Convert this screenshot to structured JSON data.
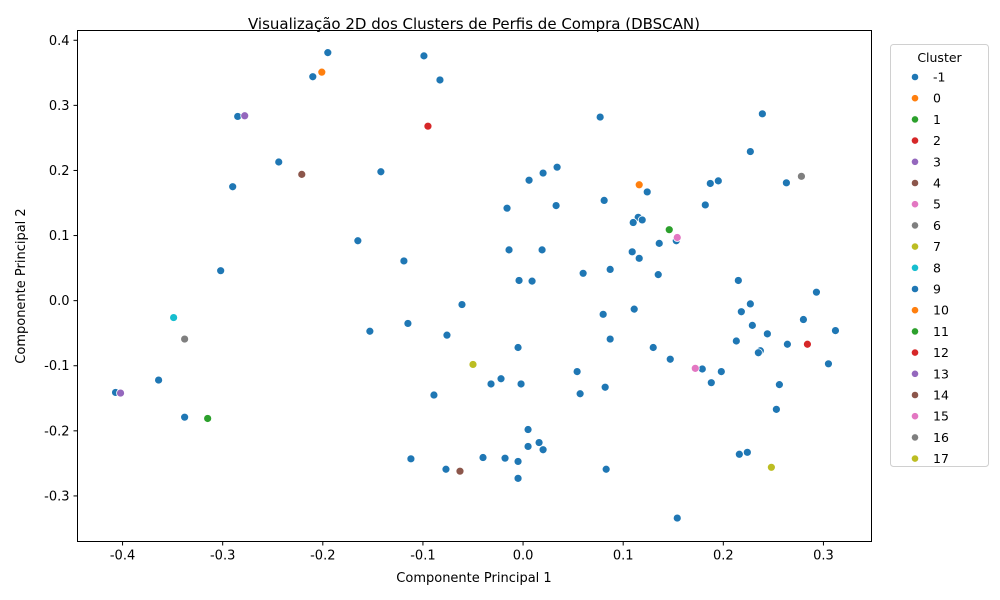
{
  "chart_data": {
    "type": "scatter",
    "title": "Visualização 2D dos Clusters de Perfis de Compra (DBSCAN)",
    "xlabel": "Componente Principal 1",
    "ylabel": "Componente Principal 2",
    "xlim": [
      -0.445,
      0.348
    ],
    "ylim": [
      -0.37,
      0.415
    ],
    "xticks": [
      "-0.4",
      "-0.3",
      "-0.2",
      "-0.1",
      "0.0",
      "0.1",
      "0.2",
      "0.3"
    ],
    "xtick_values": [
      -0.4,
      -0.3,
      -0.2,
      -0.1,
      0.0,
      0.1,
      0.2,
      0.3
    ],
    "yticks": [
      "-0.3",
      "-0.2",
      "-0.1",
      "0.0",
      "0.1",
      "0.2",
      "0.3",
      "0.4"
    ],
    "ytick_values": [
      -0.3,
      -0.2,
      -0.1,
      0.0,
      0.1,
      0.2,
      0.3,
      0.4
    ],
    "grid": false,
    "legend": {
      "title": "Cluster",
      "placement": "outside-right-top"
    },
    "series": [
      {
        "name": "-1",
        "color": "#1f77b4",
        "points": [
          [
            -0.195,
            0.381
          ],
          [
            -0.099,
            0.376
          ],
          [
            -0.083,
            0.339
          ],
          [
            -0.21,
            0.344
          ],
          [
            -0.285,
            0.283
          ],
          [
            0.077,
            0.282
          ],
          [
            0.239,
            0.287
          ],
          [
            0.227,
            0.229
          ],
          [
            -0.244,
            0.213
          ],
          [
            -0.142,
            0.198
          ],
          [
            0.034,
            0.205
          ],
          [
            0.02,
            0.196
          ],
          [
            0.006,
            0.185
          ],
          [
            -0.29,
            0.175
          ],
          [
            0.187,
            0.18
          ],
          [
            0.195,
            0.184
          ],
          [
            0.263,
            0.181
          ],
          [
            0.124,
            0.167
          ],
          [
            0.081,
            0.154
          ],
          [
            0.033,
            0.146
          ],
          [
            -0.016,
            0.142
          ],
          [
            0.182,
            0.147
          ],
          [
            0.115,
            0.128
          ],
          [
            0.119,
            0.124
          ],
          [
            0.11,
            0.12
          ],
          [
            -0.165,
            0.092
          ],
          [
            0.136,
            0.088
          ],
          [
            0.153,
            0.092
          ],
          [
            -0.014,
            0.078
          ],
          [
            0.019,
            0.078
          ],
          [
            0.109,
            0.075
          ],
          [
            0.116,
            0.065
          ],
          [
            -0.119,
            0.061
          ],
          [
            -0.302,
            0.046
          ],
          [
            0.087,
            0.048
          ],
          [
            0.06,
            0.042
          ],
          [
            0.135,
            0.04
          ],
          [
            -0.004,
            0.031
          ],
          [
            0.009,
            0.03
          ],
          [
            0.215,
            0.031
          ],
          [
            0.293,
            0.013
          ],
          [
            -0.061,
            -0.006
          ],
          [
            0.227,
            -0.005
          ],
          [
            0.111,
            -0.013
          ],
          [
            0.08,
            -0.021
          ],
          [
            0.218,
            -0.017
          ],
          [
            0.28,
            -0.029
          ],
          [
            -0.115,
            -0.035
          ],
          [
            0.229,
            -0.038
          ],
          [
            -0.153,
            -0.047
          ],
          [
            0.312,
            -0.046
          ],
          [
            -0.076,
            -0.053
          ],
          [
            0.244,
            -0.051
          ],
          [
            0.087,
            -0.059
          ],
          [
            0.213,
            -0.062
          ],
          [
            0.264,
            -0.067
          ],
          [
            0.13,
            -0.072
          ],
          [
            -0.005,
            -0.072
          ],
          [
            0.237,
            -0.077
          ],
          [
            0.235,
            -0.08
          ],
          [
            0.147,
            -0.09
          ],
          [
            0.305,
            -0.097
          ],
          [
            0.179,
            -0.105
          ],
          [
            0.198,
            -0.109
          ],
          [
            0.054,
            -0.109
          ],
          [
            -0.364,
            -0.122
          ],
          [
            -0.022,
            -0.12
          ],
          [
            -0.032,
            -0.128
          ],
          [
            -0.002,
            -0.128
          ],
          [
            0.082,
            -0.133
          ],
          [
            0.188,
            -0.126
          ],
          [
            0.256,
            -0.129
          ],
          [
            -0.407,
            -0.141
          ],
          [
            -0.089,
            -0.145
          ],
          [
            0.057,
            -0.143
          ],
          [
            0.253,
            -0.167
          ],
          [
            -0.338,
            -0.179
          ],
          [
            0.005,
            -0.198
          ],
          [
            0.016,
            -0.218
          ],
          [
            0.005,
            -0.224
          ],
          [
            0.02,
            -0.229
          ],
          [
            0.224,
            -0.233
          ],
          [
            0.216,
            -0.236
          ],
          [
            -0.112,
            -0.243
          ],
          [
            -0.04,
            -0.241
          ],
          [
            -0.018,
            -0.242
          ],
          [
            -0.005,
            -0.247
          ],
          [
            -0.077,
            -0.259
          ],
          [
            0.083,
            -0.259
          ],
          [
            -0.005,
            -0.273
          ],
          [
            0.154,
            -0.334
          ]
        ]
      },
      {
        "name": "0",
        "color": "#ff7f0e",
        "points": [
          [
            -0.201,
            0.351
          ]
        ]
      },
      {
        "name": "1",
        "color": "#2ca02c",
        "points": [
          [
            -0.315,
            -0.181
          ]
        ]
      },
      {
        "name": "2",
        "color": "#d62728",
        "points": [
          [
            -0.095,
            0.268
          ]
        ]
      },
      {
        "name": "3",
        "color": "#9467bd",
        "points": [
          [
            -0.278,
            0.284
          ]
        ]
      },
      {
        "name": "4",
        "color": "#8c564b",
        "points": [
          [
            -0.221,
            0.194
          ]
        ]
      },
      {
        "name": "5",
        "color": "#e377c2",
        "points": [
          [
            0.172,
            -0.104
          ]
        ]
      },
      {
        "name": "6",
        "color": "#7f7f7f",
        "points": [
          [
            -0.338,
            -0.059
          ]
        ]
      },
      {
        "name": "7",
        "color": "#bcbd22",
        "points": [
          [
            -0.05,
            -0.098
          ]
        ]
      },
      {
        "name": "8",
        "color": "#17becf",
        "points": [
          [
            -0.349,
            -0.026
          ]
        ]
      },
      {
        "name": "9",
        "color": "#1f77b4",
        "points": []
      },
      {
        "name": "10",
        "color": "#ff7f0e",
        "points": [
          [
            0.116,
            0.178
          ]
        ]
      },
      {
        "name": "11",
        "color": "#2ca02c",
        "points": [
          [
            0.146,
            0.109
          ]
        ]
      },
      {
        "name": "12",
        "color": "#d62728",
        "points": [
          [
            0.284,
            -0.067
          ]
        ]
      },
      {
        "name": "13",
        "color": "#9467bd",
        "points": [
          [
            -0.402,
            -0.142
          ]
        ]
      },
      {
        "name": "14",
        "color": "#8c564b",
        "points": [
          [
            -0.063,
            -0.262
          ]
        ]
      },
      {
        "name": "15",
        "color": "#e377c2",
        "points": [
          [
            0.154,
            0.097
          ]
        ]
      },
      {
        "name": "16",
        "color": "#7f7f7f",
        "points": [
          [
            0.278,
            0.191
          ]
        ]
      },
      {
        "name": "17",
        "color": "#bcbd22",
        "points": [
          [
            0.248,
            -0.256
          ]
        ]
      }
    ]
  }
}
